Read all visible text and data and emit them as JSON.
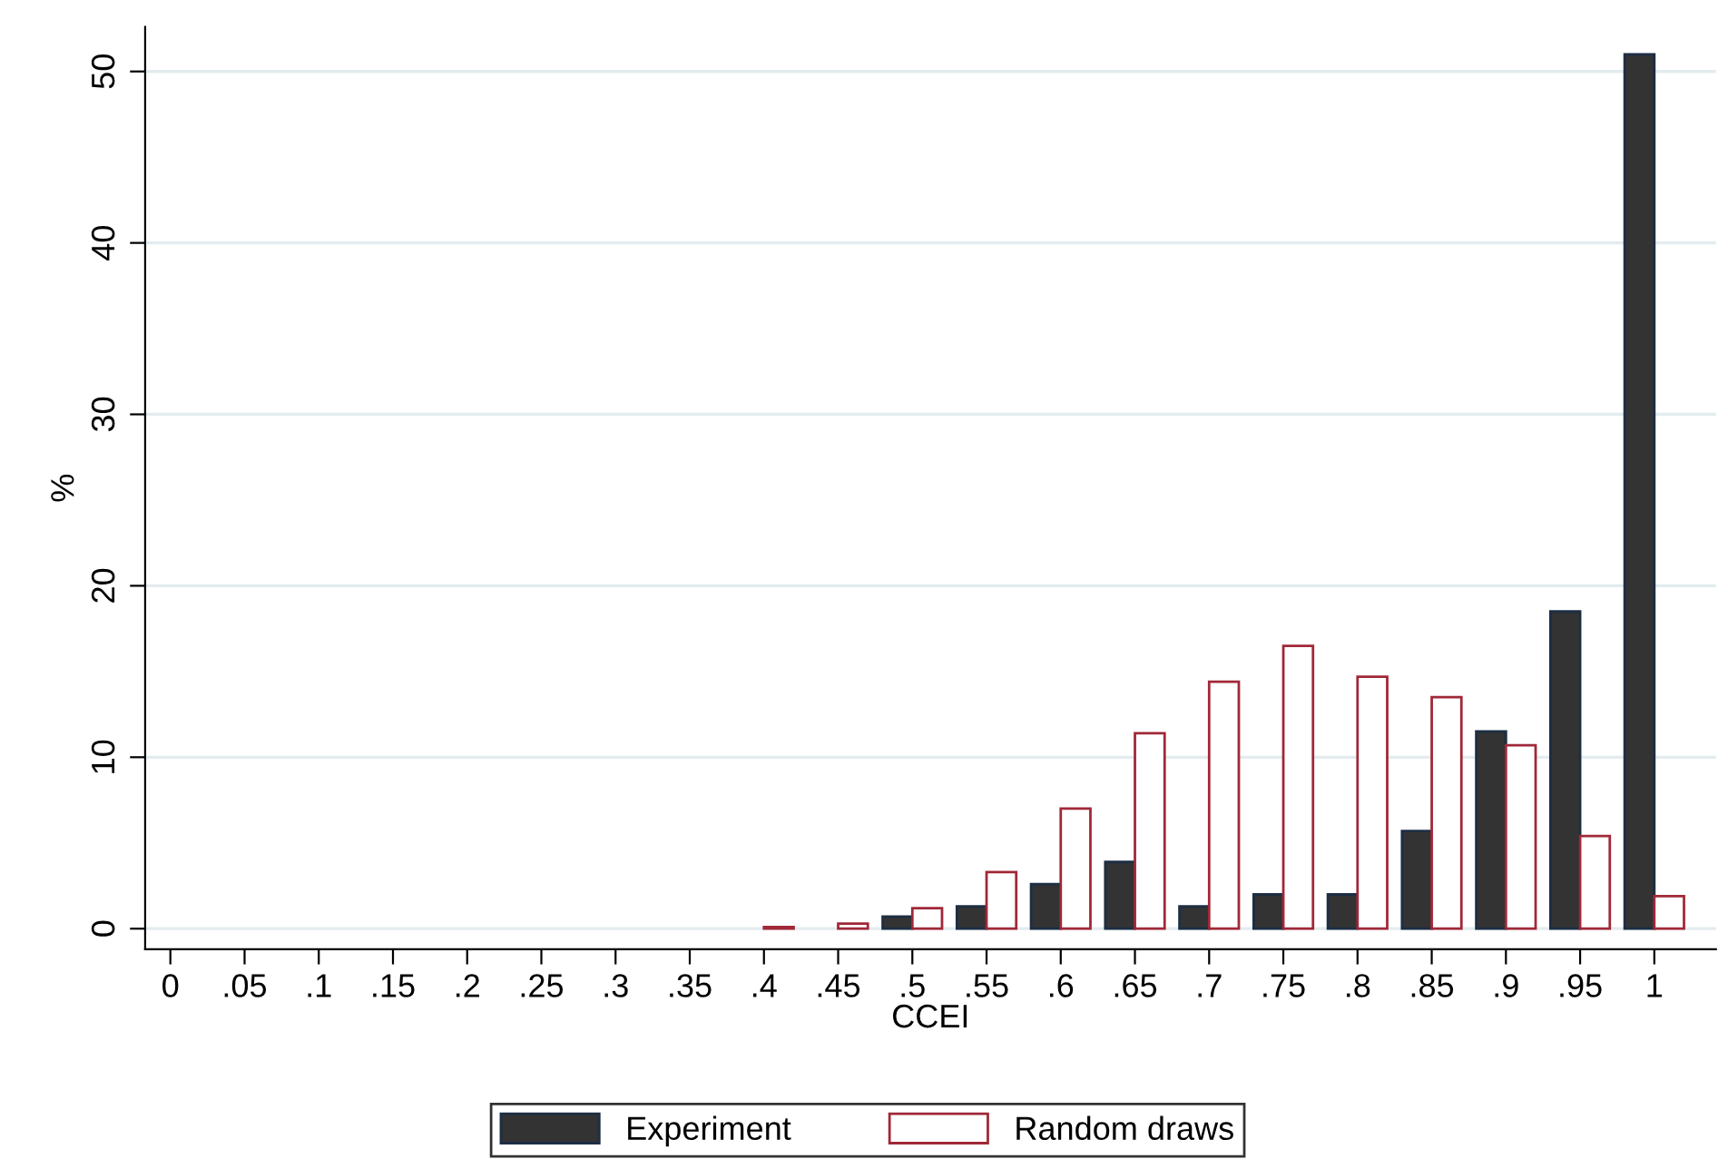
{
  "chart_data": {
    "type": "bar",
    "xlabel": "CCEI",
    "ylabel": "%",
    "categories": [
      "0",
      ".05",
      ".1",
      ".15",
      ".2",
      ".25",
      ".3",
      ".35",
      ".4",
      ".45",
      ".5",
      ".55",
      ".6",
      ".65",
      ".7",
      ".75",
      ".8",
      ".85",
      ".9",
      ".95",
      "1"
    ],
    "series": [
      {
        "name": "Experiment",
        "color": "#333333",
        "values": [
          null,
          null,
          null,
          null,
          null,
          null,
          null,
          null,
          null,
          null,
          0.7,
          1.3,
          2.6,
          3.9,
          1.3,
          2.0,
          2.0,
          5.7,
          11.5,
          18.5,
          51
        ]
      },
      {
        "name": "Random draws",
        "color": "#a02838",
        "values": [
          null,
          null,
          null,
          null,
          null,
          null,
          null,
          null,
          0.1,
          0.3,
          1.2,
          3.3,
          7.0,
          11.4,
          14.4,
          16.5,
          14.7,
          13.5,
          10.7,
          5.4,
          1.9
        ]
      }
    ],
    "ylim": [
      -1.2,
      52.6
    ],
    "yticks": [
      0,
      10,
      20,
      30,
      40,
      50
    ],
    "grid": "y",
    "legend": "bottom"
  }
}
